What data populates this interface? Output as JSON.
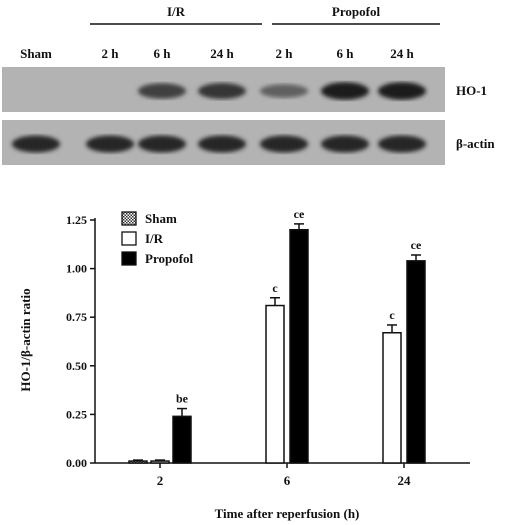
{
  "blot": {
    "groups": [
      {
        "label": "I/R"
      },
      {
        "label": "Propofol"
      }
    ],
    "lanes": [
      "Sham",
      "2 h",
      "6 h",
      "24 h",
      "2 h",
      "6 h",
      "24 h"
    ],
    "rows": [
      {
        "label": "HO-1",
        "band_intensity": [
          0.0,
          0.0,
          0.75,
          0.8,
          0.55,
          0.95,
          0.95
        ]
      },
      {
        "label": "β-actin",
        "band_intensity": [
          0.9,
          0.9,
          0.9,
          0.9,
          0.9,
          0.9,
          0.9
        ]
      }
    ]
  },
  "chart_data": {
    "type": "bar",
    "title": "",
    "xlabel": "Time after reperfusion (h)",
    "ylabel": "HO-1/β-actin ratio",
    "categories": [
      "2",
      "6",
      "24"
    ],
    "ylim": [
      0,
      1.25
    ],
    "yticks": [
      "0.00",
      "0.25",
      "0.50",
      "0.75",
      "1.00",
      "1.25"
    ],
    "legend_position": "top-left",
    "series": [
      {
        "name": "Sham",
        "values": [
          0.01,
          null,
          null
        ],
        "errors": [
          0.005,
          null,
          null
        ],
        "color": "#888888",
        "pattern": "checker",
        "labels": [
          "",
          "",
          ""
        ]
      },
      {
        "name": "I/R",
        "values": [
          0.01,
          0.81,
          0.67
        ],
        "errors": [
          0.005,
          0.04,
          0.04
        ],
        "color": "#ffffff",
        "pattern": "none",
        "labels": [
          "",
          "c",
          "c"
        ]
      },
      {
        "name": "Propofol",
        "values": [
          0.24,
          1.2,
          1.04
        ],
        "errors": [
          0.04,
          0.03,
          0.03
        ],
        "color": "#000000",
        "pattern": "none",
        "labels": [
          "be",
          "ce",
          "ce"
        ]
      }
    ]
  }
}
